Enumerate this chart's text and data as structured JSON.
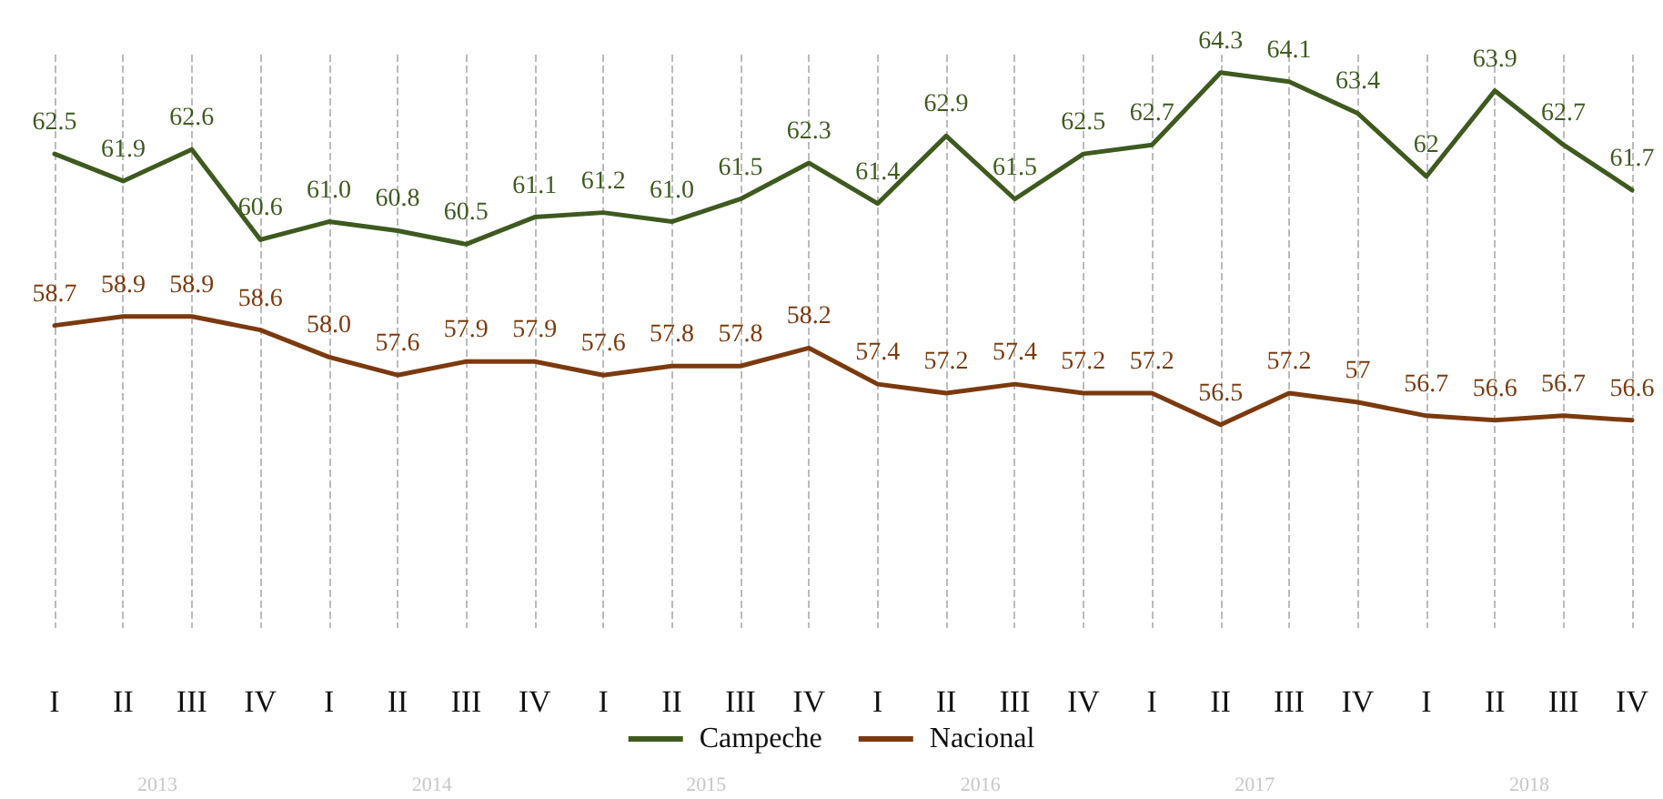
{
  "chart_data": {
    "type": "line",
    "categories": [
      "I",
      "II",
      "III",
      "IV",
      "I",
      "II",
      "III",
      "IV",
      "I",
      "II",
      "III",
      "IV",
      "I",
      "II",
      "III",
      "IV",
      "I",
      "II",
      "III",
      "IV",
      "I",
      "II",
      "III",
      "IV"
    ],
    "series": [
      {
        "name": "Campeche",
        "color": "#3e5a1f",
        "values": [
          62.5,
          61.9,
          62.6,
          60.6,
          61.0,
          60.8,
          60.5,
          61.1,
          61.2,
          61.0,
          61.5,
          62.3,
          61.4,
          62.9,
          61.5,
          62.5,
          62.7,
          64.3,
          64.1,
          63.4,
          62,
          63.9,
          62.7,
          61.7
        ],
        "value_labels": [
          "62.5",
          "61.9",
          "62.6",
          "60.6",
          "61.0",
          "60.8",
          "60.5",
          "61.1",
          "61.2",
          "61.0",
          "61.5",
          "62.3",
          "61.4",
          "62.9",
          "61.5",
          "62.5",
          "62.7",
          "64.3",
          "64.1",
          "63.4",
          "62",
          "63.9",
          "62.7",
          "61.7"
        ]
      },
      {
        "name": "Nacional",
        "color": "#7b3a0e",
        "values": [
          58.7,
          58.9,
          58.9,
          58.6,
          58.0,
          57.6,
          57.9,
          57.9,
          57.6,
          57.8,
          57.8,
          58.2,
          57.4,
          57.2,
          57.4,
          57.2,
          57.2,
          56.5,
          57.2,
          57,
          56.7,
          56.6,
          56.7,
          56.6
        ],
        "value_labels": [
          "58.7",
          "58.9",
          "58.9",
          "58.6",
          "58.0",
          "57.6",
          "57.9",
          "57.9",
          "57.6",
          "57.8",
          "57.8",
          "58.2",
          "57.4",
          "57.2",
          "57.4",
          "57.2",
          "57.2",
          "56.5",
          "57.2",
          "57",
          "56.7",
          "56.6",
          "56.7",
          "56.6"
        ]
      }
    ],
    "ylim": [
      52,
      64.7
    ],
    "annotations": [
      "2013",
      "2014",
      "2015",
      "2016",
      "2017",
      "2018"
    ],
    "grid": "x",
    "legend": "bottom",
    "marker": "none",
    "line_style": "solid"
  }
}
